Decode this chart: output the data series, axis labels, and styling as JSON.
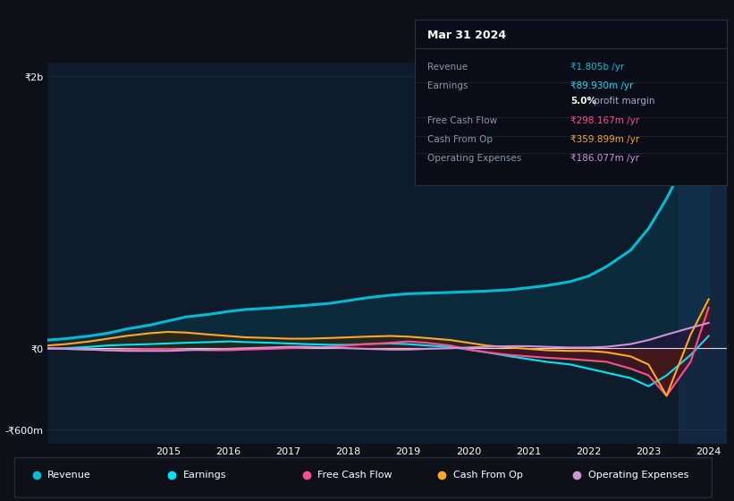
{
  "bg_color": "#0d1117",
  "plot_bg_color": "#0d1b2a",
  "ylabel_2b": "₹2b",
  "ylabel_0": "₹0",
  "ylabel_neg600m": "-₹600m",
  "info_box_title": "Mar 31 2024",
  "years": [
    2013.0,
    2013.3,
    2013.7,
    2014.0,
    2014.3,
    2014.7,
    2015.0,
    2015.3,
    2015.7,
    2016.0,
    2016.3,
    2016.7,
    2017.0,
    2017.3,
    2017.7,
    2018.0,
    2018.3,
    2018.7,
    2019.0,
    2019.3,
    2019.7,
    2020.0,
    2020.3,
    2020.7,
    2021.0,
    2021.3,
    2021.7,
    2022.0,
    2022.3,
    2022.7,
    2023.0,
    2023.3,
    2023.7,
    2024.0
  ],
  "revenue": [
    60,
    70,
    90,
    110,
    140,
    170,
    200,
    230,
    250,
    270,
    285,
    295,
    305,
    315,
    330,
    350,
    370,
    390,
    400,
    405,
    410,
    415,
    420,
    430,
    445,
    460,
    490,
    530,
    600,
    720,
    880,
    1100,
    1450,
    1805
  ],
  "earnings": [
    -5,
    0,
    10,
    20,
    25,
    30,
    35,
    40,
    45,
    50,
    45,
    40,
    35,
    30,
    25,
    25,
    30,
    35,
    30,
    20,
    10,
    -10,
    -30,
    -60,
    -80,
    -100,
    -120,
    -150,
    -180,
    -220,
    -280,
    -200,
    -50,
    90
  ],
  "free_cash_flow": [
    0,
    -5,
    -10,
    -15,
    -10,
    -5,
    -5,
    -10,
    -15,
    -15,
    -10,
    -5,
    0,
    5,
    10,
    20,
    30,
    40,
    50,
    40,
    20,
    -10,
    -30,
    -50,
    -60,
    -70,
    -80,
    -90,
    -100,
    -150,
    -200,
    -350,
    -100,
    298
  ],
  "cash_from_op": [
    20,
    30,
    50,
    70,
    90,
    110,
    120,
    115,
    100,
    90,
    80,
    75,
    70,
    70,
    75,
    80,
    85,
    90,
    85,
    75,
    60,
    40,
    20,
    5,
    -5,
    -15,
    -20,
    -20,
    -30,
    -60,
    -120,
    -350,
    100,
    360
  ],
  "operating_expenses": [
    0,
    -5,
    -10,
    -15,
    -20,
    -20,
    -20,
    -15,
    -10,
    -5,
    0,
    5,
    10,
    10,
    5,
    0,
    -5,
    -10,
    -10,
    -5,
    0,
    5,
    10,
    15,
    15,
    10,
    5,
    5,
    10,
    30,
    60,
    100,
    150,
    186
  ],
  "revenue_color": "#00bcd4",
  "earnings_color": "#00e5ff",
  "fcf_color": "#ff4d8d",
  "cashfromop_color": "#ffa726",
  "opex_color": "#ce93d8",
  "revenue_fill_color": "#0a3d52",
  "earnings_fill_color": "#0a2e1a",
  "fcf_fill_color": "#5c1020",
  "cashfromop_fill_color": "#3d2800",
  "opex_fill_color": "#2a0a3a",
  "ylim_min": -700,
  "ylim_max": 2100,
  "xmin": 2013.0,
  "xmax": 2024.3,
  "ytick_vals": [
    2000,
    0,
    -600
  ],
  "xtick_years": [
    2015,
    2016,
    2017,
    2018,
    2019,
    2020,
    2021,
    2022,
    2023,
    2024
  ],
  "highlight_x_start": 2023.5,
  "highlight_x_end": 2024.3,
  "legend_items": [
    {
      "label": "Revenue",
      "color": "#00bcd4"
    },
    {
      "label": "Earnings",
      "color": "#00e5ff"
    },
    {
      "label": "Free Cash Flow",
      "color": "#ff4d8d"
    },
    {
      "label": "Cash From Op",
      "color": "#ffa726"
    },
    {
      "label": "Operating Expenses",
      "color": "#ce93d8"
    }
  ],
  "info_rows": [
    {
      "label": "Revenue",
      "value": "₹1.805b /yr",
      "value_color": "#00bcd4",
      "separator": true
    },
    {
      "label": "Earnings",
      "value": "₹89.930m /yr",
      "value_color": "#00e5ff",
      "separator": false
    },
    {
      "label": "",
      "value": "5.0%",
      "value2": " profit margin",
      "value_color": "#ffffff",
      "value2_color": "#aaaacc",
      "separator": true
    },
    {
      "label": "Free Cash Flow",
      "value": "₹298.167m /yr",
      "value_color": "#ff4d8d",
      "separator": true
    },
    {
      "label": "Cash From Op",
      "value": "₹359.899m /yr",
      "value_color": "#ffa726",
      "separator": true
    },
    {
      "label": "Operating Expenses",
      "value": "₹186.077m /yr",
      "value_color": "#ce93d8",
      "separator": false
    }
  ]
}
